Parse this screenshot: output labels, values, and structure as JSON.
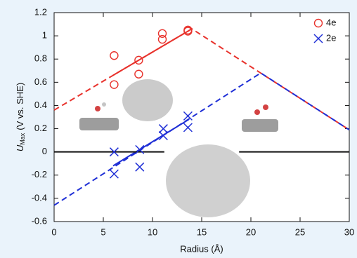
{
  "chart_data": {
    "type": "scatter",
    "xlabel": "Radius (Å)",
    "ylabel": {
      "symbol": "U",
      "subscript": "Max",
      "unit": "(V vs. SHE)"
    },
    "xlim": [
      0,
      30
    ],
    "xticks": [
      0,
      5,
      10,
      15,
      20,
      25,
      30
    ],
    "ylim": [
      -0.6,
      1.2
    ],
    "yticks": [
      1.2,
      1,
      0.8,
      0.6,
      0.4,
      0.2,
      0,
      -0.2,
      -0.4,
      -0.6
    ],
    "legend": "upper right",
    "series": [
      {
        "name": "4e",
        "color": "#e8322c",
        "marker": "circle",
        "x": [
          6.1,
          6.1,
          8.6,
          8.6,
          11,
          11,
          13.6,
          13.6
        ],
        "values": [
          0.83,
          0.58,
          0.79,
          0.67,
          1.02,
          0.97,
          1.05,
          1.04
        ]
      },
      {
        "name": "2e",
        "color": "#1f2fd6",
        "marker": "x",
        "x": [
          6.1,
          6.1,
          8.7,
          8.7,
          11.1,
          11.1,
          13.6,
          13.6
        ],
        "values": [
          0.0,
          -0.19,
          0.02,
          -0.13,
          0.2,
          0.14,
          0.31,
          0.21
        ]
      }
    ],
    "lines": [
      {
        "color": "#e8322c",
        "dash": true,
        "x": [
          0,
          14,
          30
        ],
        "y": [
          0.36,
          1.06,
          0.19
        ]
      },
      {
        "color": "#e8322c",
        "dash": false,
        "x": [
          6,
          14
        ],
        "y": [
          0.66,
          1.06
        ]
      },
      {
        "color": "#1f2fd6",
        "dash": true,
        "x": [
          0,
          21,
          30
        ],
        "y": [
          -0.46,
          0.68,
          0.19
        ]
      },
      {
        "color": "#1f2fd6",
        "dash": false,
        "x": [
          6,
          13.7
        ],
        "y": [
          -0.12,
          0.28
        ]
      },
      {
        "color": "#111111",
        "dash": false,
        "x": [
          0,
          11.2
        ],
        "y": [
          0,
          0
        ]
      },
      {
        "color": "#111111",
        "dash": false,
        "x": [
          18.8,
          30
        ],
        "y": [
          0,
          0
        ]
      }
    ]
  }
}
